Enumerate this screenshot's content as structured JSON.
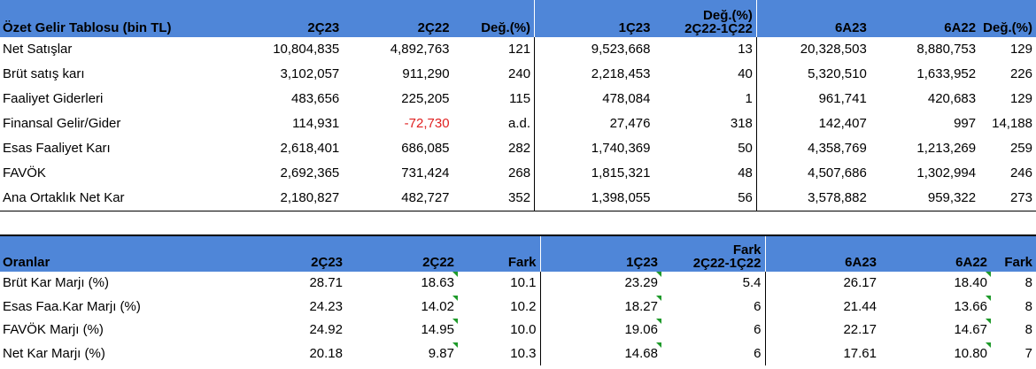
{
  "table1": {
    "header": {
      "title": "Özet Gelir Tablosu (bin TL)",
      "c1": "2Ç23",
      "c2": "2Ç22",
      "c3": "Değ.(%)",
      "c4": "1Ç23",
      "c5a": "Değ.(%)",
      "c5b": "2Ç22-1Ç22",
      "c6": "6A23",
      "c7": "6A22",
      "c8": "Değ.(%)"
    },
    "rows": [
      {
        "label": "Net Satışlar",
        "v": [
          "10,804,835",
          "4,892,763",
          "121",
          "9,523,668",
          "13",
          "20,328,503",
          "8,880,753",
          "129"
        ]
      },
      {
        "label": "Brüt satış karı",
        "v": [
          "3,102,057",
          "911,290",
          "240",
          "2,218,453",
          "40",
          "5,320,510",
          "1,633,952",
          "226"
        ]
      },
      {
        "label": "Faaliyet Giderleri",
        "v": [
          "483,656",
          "225,205",
          "115",
          "478,084",
          "1",
          "961,741",
          "420,683",
          "129"
        ]
      },
      {
        "label": "Finansal Gelir/Gider",
        "v": [
          "114,931",
          "-72,730",
          "a.d.",
          "27,476",
          "318",
          "142,407",
          "997",
          "14,188"
        ]
      },
      {
        "label": "Esas Faaliyet Karı",
        "v": [
          "2,618,401",
          "686,085",
          "282",
          "1,740,369",
          "50",
          "4,358,769",
          "1,213,269",
          "259"
        ]
      },
      {
        "label": "FAVÖK",
        "v": [
          "2,692,365",
          "731,424",
          "268",
          "1,815,321",
          "48",
          "4,507,686",
          "1,302,994",
          "246"
        ]
      },
      {
        "label": "Ana Ortaklık Net Kar",
        "v": [
          "2,180,827",
          "482,727",
          "352",
          "1,398,055",
          "56",
          "3,578,882",
          "959,322",
          "273"
        ]
      }
    ]
  },
  "table2": {
    "header": {
      "title": "Oranlar",
      "c1": "2Ç23",
      "c2": "2Ç22",
      "c3": "Fark",
      "c4": "1Ç23",
      "c5a": "Fark",
      "c5b": "2Ç22-1Ç22",
      "c6": "6A23",
      "c7": "6A22",
      "c8": "Fark"
    },
    "rows": [
      {
        "label": "Brüt Kar Marjı (%)",
        "v": [
          "28.71",
          "18.63",
          "10.1",
          "23.29",
          "5.4",
          "26.17",
          "18.40",
          "8"
        ]
      },
      {
        "label": "Esas Faa.Kar Marjı (%)",
        "v": [
          "24.23",
          "14.02",
          "10.2",
          "18.27",
          "6",
          "21.44",
          "13.66",
          "8"
        ]
      },
      {
        "label": "FAVÖK Marjı (%)",
        "v": [
          "24.92",
          "14.95",
          "10.0",
          "19.06",
          "6",
          "22.17",
          "14.67",
          "8"
        ]
      },
      {
        "label": "Net Kar Marjı (%)",
        "v": [
          "20.18",
          "9.87",
          "10.3",
          "14.68",
          "6",
          "17.61",
          "10.80",
          "7"
        ]
      }
    ]
  },
  "colors": {
    "header_bg": "#4f86d8",
    "negative": "#e02020",
    "comment_marker": "#1e9a2a"
  }
}
